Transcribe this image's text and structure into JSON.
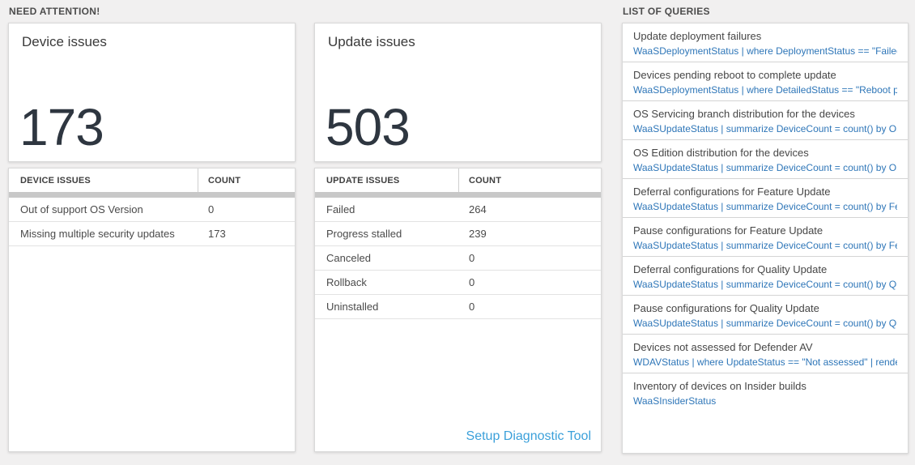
{
  "sections": {
    "need_attention_header": "NEED ATTENTION!",
    "queries_header": "LIST OF QUERIES"
  },
  "device_panel": {
    "title": "Device issues",
    "big_number": "173",
    "table": {
      "columns": [
        "DEVICE ISSUES",
        "COUNT"
      ],
      "rows": [
        {
          "label": "Out of support OS Version",
          "count": "0"
        },
        {
          "label": "Missing multiple security updates",
          "count": "173"
        }
      ]
    }
  },
  "update_panel": {
    "title": "Update issues",
    "big_number": "503",
    "table": {
      "columns": [
        "UPDATE ISSUES",
        "COUNT"
      ],
      "rows": [
        {
          "label": "Failed",
          "count": "264"
        },
        {
          "label": "Progress stalled",
          "count": "239"
        },
        {
          "label": "Canceled",
          "count": "0"
        },
        {
          "label": "Rollback",
          "count": "0"
        },
        {
          "label": "Uninstalled",
          "count": "0"
        }
      ]
    },
    "setup_link": "Setup Diagnostic Tool"
  },
  "query_list": {
    "items": [
      {
        "title": "Update deployment failures",
        "query": "WaaSDeploymentStatus | where DeploymentStatus == \"Failed\" |..."
      },
      {
        "title": "Devices pending reboot to complete update",
        "query": "WaaSDeploymentStatus | where DetailedStatus == \"Reboot pend..."
      },
      {
        "title": "OS Servicing branch distribution for the devices",
        "query": "WaaSUpdateStatus | summarize DeviceCount = count() by OSSer..."
      },
      {
        "title": "OS Edition distribution for the devices",
        "query": "WaaSUpdateStatus | summarize DeviceCount = count() by OSEdit..."
      },
      {
        "title": "Deferral configurations for Feature Update",
        "query": "WaaSUpdateStatus | summarize DeviceCount = count() by Featur..."
      },
      {
        "title": "Pause configurations for Feature Update",
        "query": "WaaSUpdateStatus | summarize DeviceCount = count() by Featur..."
      },
      {
        "title": "Deferral configurations for Quality Update",
        "query": "WaaSUpdateStatus | summarize DeviceCount = count() by Qualit..."
      },
      {
        "title": "Pause configurations for Quality Update",
        "query": "WaaSUpdateStatus | summarize DeviceCount = count() by Qualit..."
      },
      {
        "title": "Devices not assessed for Defender AV",
        "query": "WDAVStatus | where UpdateStatus == \"Not assessed\" | render ta..."
      },
      {
        "title": "Inventory of devices on Insider builds",
        "query": "WaaSInsiderStatus"
      }
    ]
  },
  "colors": {
    "background": "#f1f0f0",
    "query_link_blue": "#2e76b8",
    "setup_link_blue": "#3ba0da",
    "big_number": "#2e3640",
    "gray_bar": "#c8c8c8"
  }
}
